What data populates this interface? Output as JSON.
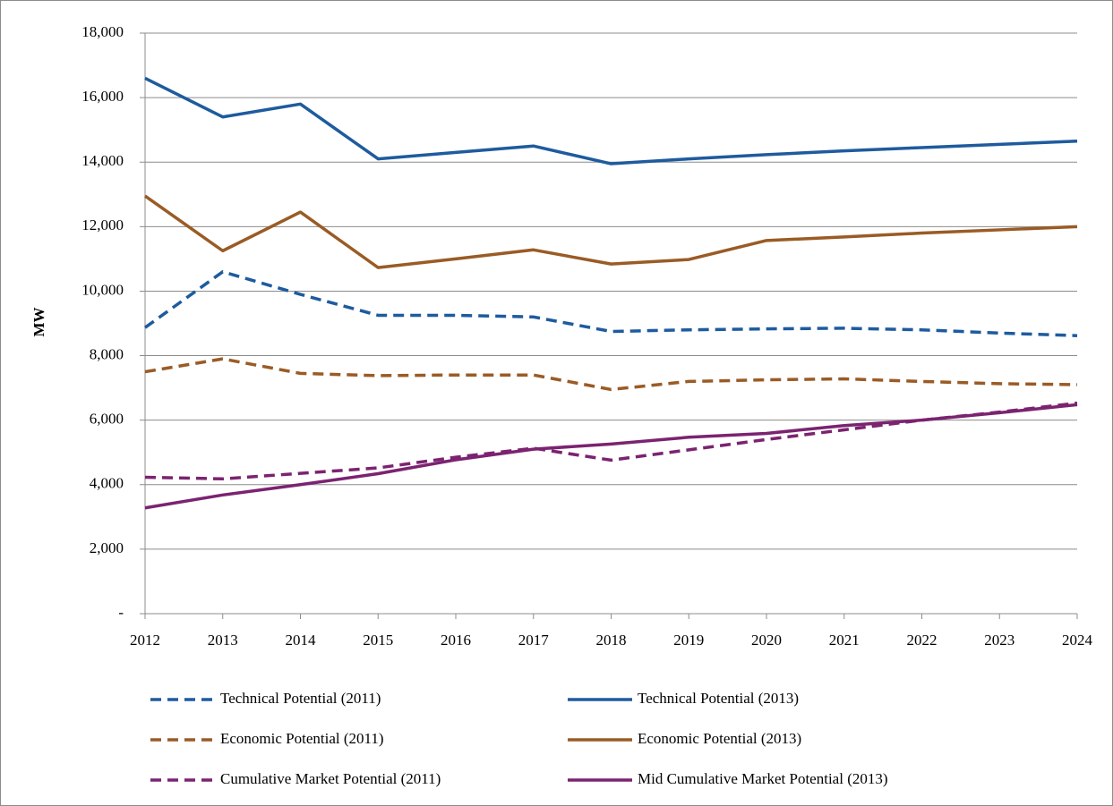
{
  "chart_data": {
    "type": "line",
    "y_label": "MW",
    "x": [
      2012,
      2013,
      2014,
      2015,
      2016,
      2017,
      2018,
      2019,
      2020,
      2021,
      2022,
      2023,
      2024
    ],
    "xlim": [
      2012,
      2024
    ],
    "xticks": [
      2012,
      2013,
      2014,
      2015,
      2016,
      2017,
      2018,
      2019,
      2020,
      2021,
      2022,
      2023,
      2024
    ],
    "ylim": [
      0,
      18000
    ],
    "yticks": [
      {
        "value": 0,
        "label": "-"
      },
      {
        "value": 2000,
        "label": "2,000"
      },
      {
        "value": 4000,
        "label": "4,000"
      },
      {
        "value": 6000,
        "label": "6,000"
      },
      {
        "value": 8000,
        "label": "8,000"
      },
      {
        "value": 10000,
        "label": "10,000"
      },
      {
        "value": 12000,
        "label": "12,000"
      },
      {
        "value": 14000,
        "label": "14,000"
      },
      {
        "value": 16000,
        "label": "16,000"
      },
      {
        "value": 18000,
        "label": "18,000"
      }
    ],
    "grid": true,
    "legend": "bottom",
    "series": [
      {
        "name": "Technical Potential (2011)",
        "color": "#1e5b9e",
        "dashed": true,
        "values": [
          8870,
          10600,
          9900,
          9250,
          9250,
          9200,
          8750,
          8800,
          8830,
          8850,
          8800,
          8700,
          8620
        ]
      },
      {
        "name": "Technical Potential (2013)",
        "color": "#1e5b9e",
        "dashed": false,
        "values": [
          16600,
          15400,
          15800,
          14100,
          14300,
          14500,
          13950,
          14100,
          14230,
          14350,
          14450,
          14550,
          14650
        ]
      },
      {
        "name": "Economic Potential (2011)",
        "color": "#9a5b25",
        "dashed": true,
        "values": [
          7500,
          7900,
          7450,
          7380,
          7400,
          7400,
          6950,
          7200,
          7250,
          7280,
          7200,
          7130,
          7100
        ]
      },
      {
        "name": "Economic Potential (2013)",
        "color": "#9a5b25",
        "dashed": false,
        "values": [
          12950,
          11250,
          12450,
          10730,
          11000,
          11280,
          10840,
          10980,
          11570,
          11680,
          11800,
          11900,
          12000
        ]
      },
      {
        "name": "Cumulative Market Potential (2011)",
        "color": "#7b2370",
        "dashed": true,
        "values": [
          4230,
          4180,
          4350,
          4520,
          4850,
          5130,
          4760,
          5080,
          5400,
          5700,
          6000,
          6250,
          6530
        ]
      },
      {
        "name": "Mid Cumulative Market Potential (2013)",
        "color": "#7b2370",
        "dashed": false,
        "values": [
          3280,
          3680,
          4000,
          4340,
          4770,
          5100,
          5260,
          5470,
          5590,
          5830,
          6000,
          6230,
          6480
        ]
      }
    ]
  }
}
